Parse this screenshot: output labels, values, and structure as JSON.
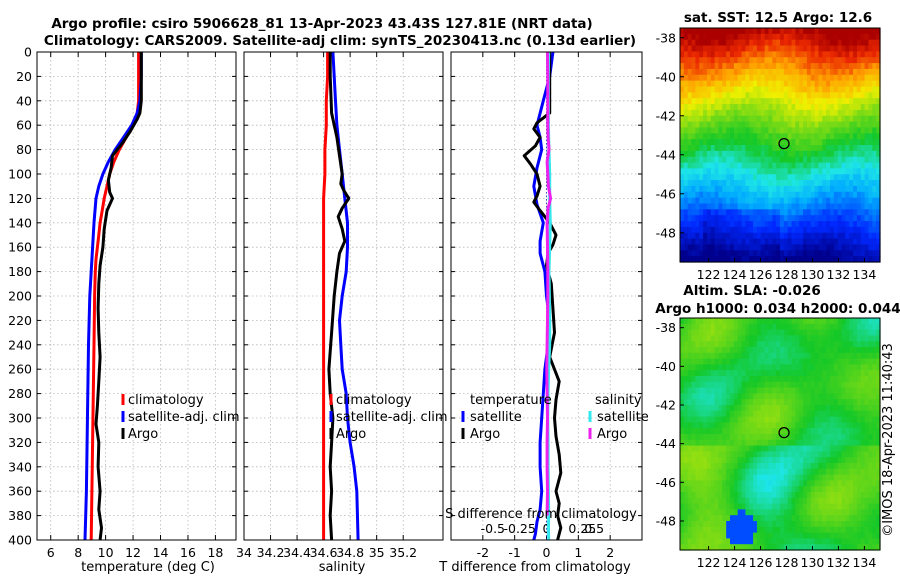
{
  "header": {
    "title_line1": "Argo profile: csiro 5906628_81 13-Apr-2023 43.43S 127.81E (NRT data)",
    "title_line2": "Climatology: CARS2009. Satellite-adj clim: synTS_20230413.nc (0.13d earlier)"
  },
  "credit": "©IMOS 18-Apr-2023 11:40:43",
  "colors": {
    "climatology": "#ff0000",
    "satellite": "#0000ff",
    "argo": "#000000",
    "sal_sat": "#33e8ee",
    "sal_argo": "#ee22ee"
  },
  "chart_data": [
    {
      "type": "line",
      "name": "temperature",
      "xlabel": "temperature (deg C)",
      "ylabel": "",
      "xlim": [
        5,
        19.5
      ],
      "ylim": [
        0,
        400
      ],
      "y_reversed": true,
      "grid": true,
      "xticks": [
        6,
        8,
        10,
        12,
        14,
        16,
        18
      ],
      "yticks": [
        0,
        20,
        40,
        60,
        80,
        100,
        120,
        140,
        160,
        180,
        200,
        220,
        240,
        260,
        280,
        300,
        320,
        340,
        360,
        380,
        400
      ],
      "legend": [
        "climatology",
        "satellite-adj. clim",
        "Argo"
      ],
      "legend_placement": "lower-right",
      "series": [
        {
          "name": "climatology",
          "color": "#ff0000",
          "x": [
            12.4,
            12.4,
            12.4,
            12.3,
            12.0,
            11.5,
            11.0,
            10.6,
            10.3,
            10.1,
            9.9,
            9.75,
            9.6,
            9.5,
            9.4,
            9.3,
            9.25,
            9.2,
            9.15,
            9.1,
            9.05,
            9.0,
            8.95
          ],
          "y": [
            0,
            20,
            40,
            50,
            60,
            70,
            80,
            90,
            100,
            110,
            120,
            130,
            140,
            150,
            160,
            170,
            180,
            200,
            240,
            280,
            320,
            360,
            400
          ]
        },
        {
          "name": "satellite-adj. clim",
          "color": "#0000ff",
          "x": [
            12.6,
            12.6,
            12.5,
            12.3,
            11.9,
            11.3,
            10.7,
            10.2,
            9.8,
            9.5,
            9.3,
            9.15,
            9.05,
            8.95,
            8.85,
            8.75,
            8.7,
            8.65,
            8.6,
            8.5
          ],
          "y": [
            0,
            20,
            40,
            50,
            60,
            70,
            80,
            90,
            100,
            110,
            120,
            140,
            160,
            180,
            200,
            240,
            280,
            320,
            360,
            400
          ]
        },
        {
          "name": "Argo",
          "color": "#000000",
          "x": [
            12.6,
            12.6,
            12.6,
            12.5,
            12.3,
            11.8,
            11.2,
            10.5,
            10.4,
            10.2,
            10.3,
            10.5,
            10.1,
            9.9,
            9.8,
            9.6,
            9.5,
            9.45,
            9.5,
            9.6,
            9.5,
            9.4,
            9.3,
            9.5,
            9.45,
            9.6,
            9.5,
            9.7,
            9.6
          ],
          "y": [
            0,
            20,
            40,
            50,
            55,
            65,
            75,
            85,
            95,
            105,
            115,
            120,
            130,
            145,
            160,
            175,
            190,
            210,
            230,
            250,
            270,
            290,
            305,
            320,
            340,
            360,
            375,
            390,
            400
          ]
        }
      ]
    },
    {
      "type": "line",
      "name": "salinity",
      "xlabel": "salinity",
      "ylabel": "",
      "xlim": [
        34,
        35.5
      ],
      "ylim": [
        0,
        400
      ],
      "y_reversed": true,
      "grid": true,
      "xticks": [
        34,
        34.2,
        34.4,
        34.6,
        34.8,
        35,
        35.2
      ],
      "yticks": [
        0,
        20,
        40,
        60,
        80,
        100,
        120,
        140,
        160,
        180,
        200,
        220,
        240,
        260,
        280,
        300,
        320,
        340,
        360,
        380,
        400
      ],
      "legend": [
        "climatology",
        "satellite-adj. clim",
        "Argo"
      ],
      "legend_placement": "lower-right",
      "series": [
        {
          "name": "climatology",
          "color": "#ff0000",
          "x": [
            34.63,
            34.63,
            34.62,
            34.62,
            34.61,
            34.61,
            34.6,
            34.6,
            34.6,
            34.6,
            34.6,
            34.6,
            34.6,
            34.6
          ],
          "y": [
            0,
            20,
            40,
            60,
            80,
            100,
            120,
            140,
            160,
            200,
            250,
            300,
            350,
            400
          ]
        },
        {
          "name": "satellite-adj. clim",
          "color": "#0000ff",
          "x": [
            34.67,
            34.68,
            34.69,
            34.7,
            34.72,
            34.74,
            34.76,
            34.78,
            34.78,
            34.77,
            34.74,
            34.72,
            34.73,
            34.74,
            34.77,
            34.78,
            34.8,
            34.83,
            34.85,
            34.86
          ],
          "y": [
            0,
            20,
            40,
            60,
            80,
            100,
            120,
            140,
            160,
            180,
            200,
            220,
            240,
            260,
            280,
            300,
            320,
            340,
            360,
            400
          ]
        },
        {
          "name": "Argo",
          "color": "#000000",
          "x": [
            34.65,
            34.65,
            34.66,
            34.7,
            34.72,
            34.74,
            34.73,
            34.75,
            34.79,
            34.74,
            34.71,
            34.74,
            34.76,
            34.72,
            34.7,
            34.68,
            34.66,
            34.64,
            34.65,
            34.67,
            34.66,
            34.65,
            34.66,
            34.65,
            34.66
          ],
          "y": [
            0,
            20,
            50,
            70,
            85,
            100,
            108,
            113,
            120,
            128,
            135,
            145,
            155,
            165,
            180,
            200,
            230,
            260,
            280,
            300,
            320,
            340,
            360,
            380,
            400
          ]
        }
      ]
    },
    {
      "type": "line",
      "name": "differences",
      "xlabel": "T difference from climatology",
      "xlabel_top": "S difference from climatology",
      "xlim": [
        -3,
        3
      ],
      "ylim": [
        0,
        400
      ],
      "y_reversed": true,
      "grid": true,
      "xticks": [
        -2,
        -1,
        0,
        1,
        2
      ],
      "xticks_s": [
        "-0.5",
        "-0.25",
        "0",
        "0.25",
        "0.5"
      ],
      "yticks": [
        0,
        20,
        40,
        60,
        80,
        100,
        120,
        140,
        160,
        180,
        200,
        220,
        240,
        260,
        280,
        300,
        320,
        340,
        360,
        380,
        400
      ],
      "legend_t_title": "temperature",
      "legend_s_title": "salinity",
      "legend": [
        "satellite",
        "Argo",
        "satellite",
        "Argo"
      ],
      "legend_placement": "lower-center",
      "series": [
        {
          "name": "temperature satellite",
          "color": "#0000ff",
          "x": [
            0.2,
            0.1,
            -0.1,
            -0.3,
            -0.2,
            -0.15,
            -0.3,
            -0.4,
            -0.3,
            -0.1,
            -0.2,
            -0.2,
            -0.05,
            0,
            0.1,
            0.05,
            -0.05,
            -0.1,
            -0.15,
            -0.2,
            -0.2,
            -0.15,
            -0.2,
            -0.3,
            -0.35,
            -0.4
          ],
          "y": [
            0,
            20,
            40,
            60,
            70,
            80,
            95,
            110,
            125,
            140,
            155,
            165,
            180,
            200,
            220,
            240,
            260,
            280,
            300,
            320,
            340,
            360,
            375,
            385,
            395,
            400
          ]
        },
        {
          "name": "temperature Argo",
          "color": "#000000",
          "x": [
            0.1,
            0.1,
            0.1,
            0.1,
            -0.3,
            -0.4,
            -0.2,
            -0.35,
            -0.7,
            -0.5,
            -0.3,
            -0.2,
            -0.3,
            -0.4,
            -0.2,
            0.1,
            0.3,
            0.2,
            0.05,
            0,
            0.15,
            0.2,
            0.25,
            0.1,
            0.4,
            0.3,
            0.25,
            0.3,
            0.4,
            0.45,
            0.3,
            0.4,
            0.35,
            0.45,
            0.35
          ],
          "y": [
            0,
            20,
            40,
            50,
            58,
            63,
            70,
            77,
            85,
            92,
            100,
            110,
            118,
            123,
            130,
            140,
            150,
            158,
            165,
            175,
            190,
            210,
            230,
            250,
            270,
            285,
            300,
            315,
            330,
            345,
            360,
            370,
            380,
            390,
            400
          ]
        },
        {
          "name": "salinity satellite",
          "color": "#33e8ee",
          "x": [
            0.07,
            0.06,
            0.06,
            0.06,
            0.08,
            0.1,
            0.1,
            0.12,
            0.1,
            0.08,
            0.09,
            0.1,
            0.1,
            0.07,
            0.05,
            0.04,
            0.05,
            0.05,
            0.06,
            0.07,
            0.06,
            0.07
          ],
          "y": [
            0,
            20,
            40,
            60,
            80,
            100,
            120,
            140,
            160,
            180,
            200,
            220,
            240,
            260,
            280,
            300,
            320,
            340,
            360,
            380,
            390,
            400
          ]
        },
        {
          "name": "salinity Argo",
          "color": "#ee22ee",
          "x": [
            0.03,
            0.04,
            0.04,
            0.04,
            0.05,
            0.08,
            0.02,
            0.04,
            0.06,
            0.13,
            0.05,
            0.02,
            0.03,
            0.04,
            0.04,
            0.03,
            0.02,
            0.01,
            0.02,
            0.03,
            0.02,
            0.02,
            0.03,
            0.02
          ],
          "y": [
            0,
            20,
            40,
            60,
            70,
            80,
            90,
            100,
            110,
            120,
            128,
            140,
            160,
            180,
            200,
            220,
            240,
            260,
            280,
            300,
            320,
            340,
            360,
            380
          ]
        }
      ]
    },
    {
      "type": "heatmap",
      "name": "sst-map",
      "title": "sat. SST: 12.5 Argo: 12.6",
      "xlim": [
        119.8,
        135.2
      ],
      "ylim": [
        -49.5,
        -37.5
      ],
      "xticks": [
        122,
        124,
        126,
        128,
        130,
        132,
        134
      ],
      "yticks": [
        -38,
        -40,
        -42,
        -44,
        -46,
        -48
      ],
      "marker": {
        "lon": 127.81,
        "lat": -43.43
      }
    },
    {
      "type": "heatmap",
      "name": "sla-map",
      "title": "Altim. SLA: -0.026",
      "subtitle": "Argo h1000: 0.034 h2000: 0.044",
      "xlim": [
        119.8,
        135.2
      ],
      "ylim": [
        -49.5,
        -37.5
      ],
      "xticks": [
        122,
        124,
        126,
        128,
        130,
        132,
        134
      ],
      "yticks": [
        -38,
        -40,
        -42,
        -44,
        -46,
        -48
      ],
      "marker": {
        "lon": 127.81,
        "lat": -43.43
      }
    }
  ]
}
